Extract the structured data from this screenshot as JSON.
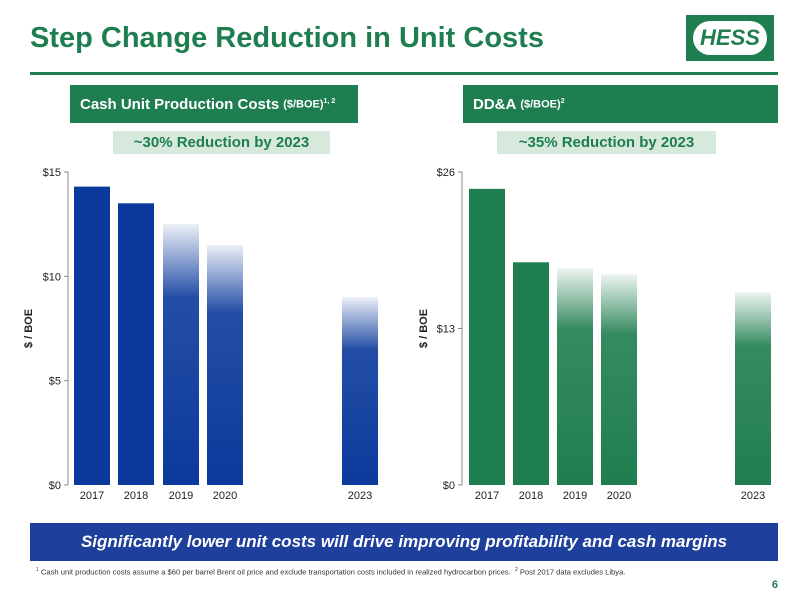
{
  "title": "Step Change Reduction in Unit Costs",
  "logo_text": "HESS",
  "left_panel": {
    "header": "Cash Unit Production Costs",
    "unit": "($/BOE)",
    "notes": "1, 2",
    "reduction": "~30% Reduction by 2023"
  },
  "right_panel": {
    "header": "DD&A",
    "unit": "($/BOE)",
    "notes": "2",
    "reduction": "~35% Reduction by 2023"
  },
  "banner": "Significantly lower unit costs will drive improving profitability and cash margins",
  "footnote_1_marker": "1",
  "footnote_1": "Cash unit production costs assume a $60 per barrel Brent oil price and exclude transportation costs included in realized hydrocarbon prices.",
  "footnote_2_marker": "2",
  "footnote_2": "Post 2017 data excludes Libya.",
  "page_number": "6",
  "colors": {
    "green": "#1f7e4f",
    "blue": "#0b3a9c",
    "banner": "#1e3f9b"
  },
  "chart_data": [
    {
      "type": "bar",
      "title": "Cash Unit Production Costs ($/BOE)",
      "ylabel": "$ / BOE",
      "ylim": [
        0,
        15
      ],
      "yticks": [
        "$0",
        "$5",
        "$10",
        "$15"
      ],
      "ytick_values": [
        0,
        5,
        10,
        15
      ],
      "categories": [
        "2017",
        "2018",
        "2019",
        "2020",
        "2023"
      ],
      "values": [
        14.3,
        13.5,
        12.5,
        11.5,
        9.0
      ],
      "projected": [
        false,
        false,
        true,
        true,
        true
      ],
      "color": "#0b3a9c"
    },
    {
      "type": "bar",
      "title": "DD&A ($/BOE)",
      "ylabel": "$ / BOE",
      "ylim": [
        0,
        26
      ],
      "yticks": [
        "$0",
        "$13",
        "$26"
      ],
      "ytick_values": [
        0,
        13,
        26
      ],
      "categories": [
        "2017",
        "2018",
        "2019",
        "2020",
        "2023"
      ],
      "values": [
        24.6,
        18.5,
        18.0,
        17.5,
        16.0
      ],
      "projected": [
        false,
        false,
        true,
        true,
        true
      ],
      "color": "#1f7e4f"
    }
  ]
}
